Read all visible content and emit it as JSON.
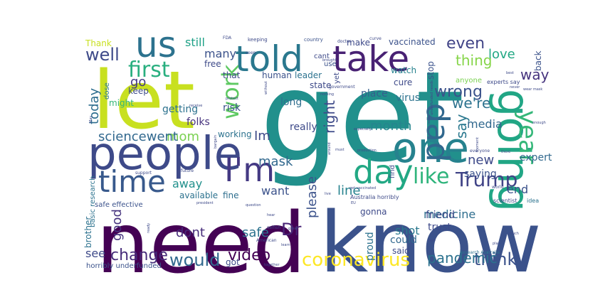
{
  "word_cloud": {
    "words": [
      {
        "text": "get",
        "color": "#21908c"
      },
      {
        "text": "need",
        "color": "#440154"
      },
      {
        "text": "know",
        "color": "#3b528b"
      },
      {
        "text": "let",
        "color": "#c8e020"
      },
      {
        "text": "people",
        "color": "#3e4a89"
      },
      {
        "text": "going",
        "color": "#21a685"
      },
      {
        "text": "one",
        "color": "#26828e"
      },
      {
        "text": "told",
        "color": "#2a788e"
      },
      {
        "text": "take",
        "color": "#482173"
      },
      {
        "text": "us",
        "color": "#2c728e"
      },
      {
        "text": "day",
        "color": "#22a884"
      },
      {
        "text": "I'm",
        "color": "#443983"
      },
      {
        "text": "time",
        "color": "#38598c"
      },
      {
        "text": "dad",
        "color": "#31688e"
      },
      {
        "text": "year",
        "color": "#35b779"
      },
      {
        "text": "work",
        "color": "#5ec962"
      },
      {
        "text": "first",
        "color": "#29af7f"
      },
      {
        "text": "like",
        "color": "#2fb47c"
      },
      {
        "text": "Trump",
        "color": "#414487"
      },
      {
        "text": "coronavirus",
        "color": "#fde725"
      },
      {
        "text": "think",
        "color": "#3b528b"
      },
      {
        "text": "would",
        "color": "#31688e"
      },
      {
        "text": "change",
        "color": "#472c7a"
      },
      {
        "text": "video",
        "color": "#440154"
      },
      {
        "text": "pandemic",
        "color": "#2c728e"
      },
      {
        "text": "well",
        "color": "#3e4a89"
      },
      {
        "text": "even",
        "color": "#414487"
      },
      {
        "text": "thing",
        "color": "#86d549"
      },
      {
        "text": "way",
        "color": "#46337e"
      },
      {
        "text": "wrong",
        "color": "#3b528b"
      },
      {
        "text": "we're",
        "color": "#2c728e"
      },
      {
        "text": "say",
        "color": "#2a788e"
      },
      {
        "text": "month",
        "color": "#25858e"
      },
      {
        "text": "right",
        "color": "#3e4a89"
      },
      {
        "text": "mask",
        "color": "#31688e"
      },
      {
        "text": "Dr",
        "color": "#482475"
      },
      {
        "text": "please",
        "color": "#3b528b"
      },
      {
        "text": "mom",
        "color": "#7ad151"
      },
      {
        "text": "sciencewent",
        "color": "#31688e"
      },
      {
        "text": "today",
        "color": "#2e6e8e"
      },
      {
        "text": "go",
        "color": "#443983"
      },
      {
        "text": "Im",
        "color": "#3e4a89"
      },
      {
        "text": "love",
        "color": "#22a884"
      },
      {
        "text": "new",
        "color": "#3e4a89"
      },
      {
        "text": "media",
        "color": "#31688e"
      },
      {
        "text": "line",
        "color": "#26828e"
      },
      {
        "text": "want",
        "color": "#3b528b"
      },
      {
        "text": "away",
        "color": "#21908c"
      },
      {
        "text": "end",
        "color": "#3b528b"
      },
      {
        "text": "safe",
        "color": "#2c728e"
      },
      {
        "text": "dont",
        "color": "#472c7a"
      },
      {
        "text": "good",
        "color": "#46337e"
      },
      {
        "text": "see",
        "color": "#3e4a89"
      },
      {
        "text": "shot",
        "color": "#2a788e"
      },
      {
        "text": "many",
        "color": "#3b528b"
      },
      {
        "text": "still",
        "color": "#1fa187"
      },
      {
        "text": "medicine",
        "color": "#2e6e8e"
      },
      {
        "text": "saying",
        "color": "#3b528b"
      },
      {
        "text": "expert",
        "color": "#31688e"
      },
      {
        "text": "really",
        "color": "#3e4a89"
      },
      {
        "text": "place",
        "color": "#355f8d"
      },
      {
        "text": "long",
        "color": "#2e6e8e"
      },
      {
        "text": "risk",
        "color": "#3b528b"
      },
      {
        "text": "getting",
        "color": "#2c728e"
      },
      {
        "text": "folks",
        "color": "#46337e"
      },
      {
        "text": "working",
        "color": "#2c728e"
      },
      {
        "text": "keep",
        "color": "#3e4a89"
      },
      {
        "text": "might",
        "color": "#35b779"
      },
      {
        "text": "dose",
        "color": "#2a788e"
      },
      {
        "text": "cure",
        "color": "#3e4a89"
      },
      {
        "text": "virus",
        "color": "#2c728e"
      },
      {
        "text": "human",
        "color": "#3b528b"
      },
      {
        "text": "leader",
        "color": "#2c728e"
      },
      {
        "text": "that",
        "color": "#3e4a89"
      },
      {
        "text": "state",
        "color": "#3e4a89"
      },
      {
        "text": "free",
        "color": "#3e4a89"
      },
      {
        "text": "make",
        "color": "#3e4a89"
      },
      {
        "text": "vaccinated",
        "color": "#3b528b"
      },
      {
        "text": "watch",
        "color": "#26828e"
      },
      {
        "text": "stop",
        "color": "#3b528b"
      },
      {
        "text": "back",
        "color": "#3b528b"
      },
      {
        "text": "anyone",
        "color": "#7ad151"
      },
      {
        "text": "Thank",
        "color": "#c8e020"
      },
      {
        "text": "fine",
        "color": "#2e6e8e"
      },
      {
        "text": "available",
        "color": "#2c728e"
      },
      {
        "text": "gonna",
        "color": "#3e4a89"
      },
      {
        "text": "trust",
        "color": "#3e4a89"
      },
      {
        "text": "friend",
        "color": "#3e4a89"
      },
      {
        "text": "could",
        "color": "#31688e"
      },
      {
        "text": "said",
        "color": "#3e4a89"
      },
      {
        "text": "proud",
        "color": "#2c728e"
      },
      {
        "text": "brother",
        "color": "#2c728e"
      },
      {
        "text": "basic research",
        "color": "#2c728e"
      },
      {
        "text": "got",
        "color": "#3e4a89"
      },
      {
        "text": "safe effective",
        "color": "#3b528b"
      },
      {
        "text": "horribly underfunded",
        "color": "#3b528b"
      },
      {
        "text": "Australia horribly",
        "color": "#3e4a89"
      },
      {
        "text": "yet",
        "color": "#3e4a89"
      },
      {
        "text": "use",
        "color": "#3b528b"
      },
      {
        "text": "cant",
        "color": "#3e4a89"
      },
      {
        "text": "find",
        "color": "#3e4a89"
      },
      {
        "text": "scientist",
        "color": "#3e4a89"
      },
      {
        "text": "idea",
        "color": "#2c728e"
      },
      {
        "text": "experts say",
        "color": "#3e4a89"
      },
      {
        "text": "keeping",
        "color": "#3e4a89"
      },
      {
        "text": "country",
        "color": "#3b528b"
      },
      {
        "text": "doctor",
        "color": "#3e4a89"
      },
      {
        "text": "curve",
        "color": "#3e4a89"
      },
      {
        "text": "FDA",
        "color": "#3e4a89"
      },
      {
        "text": "seen",
        "color": "#3e4a89"
      },
      {
        "text": "government",
        "color": "#3e4a89"
      },
      {
        "text": "world",
        "color": "#3e4a89"
      },
      {
        "text": "two",
        "color": "#3e4a89"
      },
      {
        "text": "everyone",
        "color": "#3e4a89"
      },
      {
        "text": "future",
        "color": "#3e4a89"
      },
      {
        "text": "support",
        "color": "#3e4a89"
      },
      {
        "text": "American",
        "color": "#3e4a89"
      },
      {
        "text": "selfish",
        "color": "#3e4a89"
      },
      {
        "text": "Research Australia",
        "color": "#2c728e"
      },
      {
        "text": "together",
        "color": "#3e4a89"
      },
      {
        "text": "learn",
        "color": "#3e4a89"
      },
      {
        "text": "great",
        "color": "#3e4a89"
      },
      {
        "text": "hear",
        "color": "#3e4a89"
      },
      {
        "text": "ready",
        "color": "#3e4a89"
      },
      {
        "text": "much",
        "color": "#3e4a89"
      },
      {
        "text": "underfunded needs",
        "color": "#3e4a89"
      },
      {
        "text": "especially",
        "color": "#3e4a89"
      },
      {
        "text": "production",
        "color": "#3e4a89"
      },
      {
        "text": "must",
        "color": "#3e4a89"
      },
      {
        "text": "around",
        "color": "#3e4a89"
      },
      {
        "text": "without",
        "color": "#3e4a89"
      },
      {
        "text": "protect",
        "color": "#3e4a89"
      },
      {
        "text": "EU",
        "color": "#3e4a89"
      },
      {
        "text": "get vaccinated",
        "color": "#3e4a89"
      },
      {
        "text": "plan",
        "color": "#3e4a89"
      },
      {
        "text": "moment",
        "color": "#3e4a89"
      },
      {
        "text": "wear mask",
        "color": "#3e4a89"
      },
      {
        "text": "best",
        "color": "#3e4a89"
      },
      {
        "text": "never",
        "color": "#3e4a89"
      },
      {
        "text": "enough",
        "color": "#3e4a89"
      },
      {
        "text": "there",
        "color": "#3e4a89"
      },
      {
        "text": "May",
        "color": "#3e4a89"
      },
      {
        "text": "receive",
        "color": "#3e4a89"
      },
      {
        "text": "nothing",
        "color": "#3e4a89"
      },
      {
        "text": "question",
        "color": "#3e4a89"
      },
      {
        "text": "president",
        "color": "#3e4a89"
      },
      {
        "text": "brought",
        "color": "#3e4a89"
      },
      {
        "text": "live",
        "color": "#3e4a89"
      },
      {
        "text": "bargain",
        "color": "#3e4a89"
      },
      {
        "text": "issue",
        "color": "#3e4a89"
      }
    ]
  }
}
